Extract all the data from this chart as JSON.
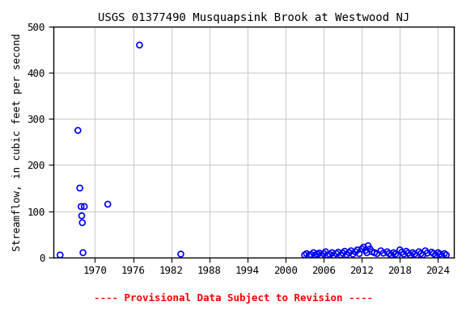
{
  "title": "USGS 01377490 Musquapsink Brook at Westwood NJ",
  "ylabel": "Streamflow, in cubic feet per second",
  "xlabel": "",
  "footnote": "---- Provisional Data Subject to Revision ----",
  "footnote_color": "#ff0000",
  "xlim": [
    1963.5,
    2026.5
  ],
  "ylim": [
    0,
    500
  ],
  "yticks": [
    0,
    100,
    200,
    300,
    400,
    500
  ],
  "xticks": [
    1970,
    1976,
    1982,
    1988,
    1994,
    2000,
    2006,
    2012,
    2018,
    2024
  ],
  "marker_color": "#0000ff",
  "marker_facecolor": "none",
  "marker_size": 5,
  "marker_linewidth": 1.2,
  "grid_color": "#c8c8c8",
  "background_color": "#ffffff",
  "data_x": [
    1964.5,
    1967.3,
    1967.6,
    1967.8,
    1967.9,
    1968.0,
    1968.1,
    1968.3,
    1972.0,
    1977.0,
    1983.5,
    2003.0,
    2003.3,
    2003.7,
    2004.0,
    2004.4,
    2004.7,
    2005.0,
    2005.3,
    2005.6,
    2006.0,
    2006.3,
    2006.6,
    2007.0,
    2007.3,
    2007.6,
    2008.0,
    2008.3,
    2008.7,
    2009.0,
    2009.3,
    2009.6,
    2010.0,
    2010.3,
    2010.6,
    2011.0,
    2011.3,
    2011.6,
    2012.0,
    2012.3,
    2012.6,
    2012.8,
    2013.0,
    2013.3,
    2013.6,
    2014.0,
    2014.4,
    2015.0,
    2015.4,
    2016.0,
    2016.3,
    2016.6,
    2017.0,
    2017.3,
    2017.6,
    2018.0,
    2018.3,
    2018.6,
    2019.0,
    2019.3,
    2019.6,
    2020.0,
    2020.3,
    2020.6,
    2021.0,
    2021.3,
    2021.6,
    2022.0,
    2022.3,
    2023.0,
    2023.3,
    2023.6,
    2024.0,
    2024.3,
    2024.6,
    2025.0,
    2025.3
  ],
  "data_y": [
    5,
    275,
    150,
    110,
    90,
    75,
    10,
    110,
    115,
    460,
    7,
    5,
    8,
    4,
    6,
    10,
    5,
    7,
    9,
    4,
    8,
    12,
    5,
    6,
    10,
    4,
    8,
    11,
    5,
    9,
    13,
    6,
    10,
    14,
    7,
    12,
    16,
    8,
    18,
    22,
    15,
    10,
    25,
    18,
    12,
    10,
    8,
    14,
    9,
    12,
    8,
    5,
    10,
    7,
    4,
    16,
    11,
    7,
    13,
    9,
    5,
    10,
    7,
    4,
    12,
    8,
    5,
    14,
    9,
    11,
    8,
    5,
    10,
    7,
    4,
    8,
    5
  ],
  "title_fontsize": 10,
  "axis_fontsize": 9,
  "tick_fontsize": 9,
  "footnote_fontsize": 9
}
